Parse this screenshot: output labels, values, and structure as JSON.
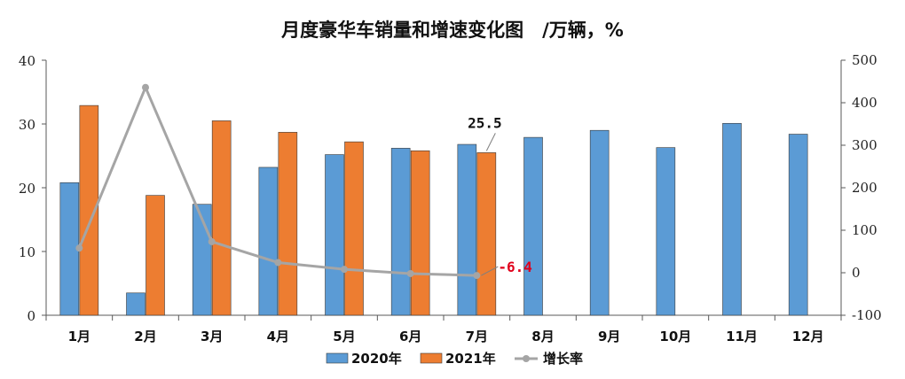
{
  "chart_data": {
    "type": "bar",
    "title": "月度豪华车销量和增速变化图　/万辆，%",
    "categories": [
      "1月",
      "2月",
      "3月",
      "4月",
      "5月",
      "6月",
      "7月",
      "8月",
      "9月",
      "10月",
      "11月",
      "12月"
    ],
    "series": [
      {
        "name": "2020年",
        "type": "bar",
        "axis": "left",
        "color": "#5B9BD5",
        "values": [
          20.8,
          3.5,
          17.4,
          23.2,
          25.2,
          26.2,
          26.8,
          27.9,
          29.0,
          26.3,
          30.1,
          28.4
        ]
      },
      {
        "name": "2021年",
        "type": "bar",
        "axis": "left",
        "color": "#ED7D31",
        "values": [
          32.9,
          18.8,
          30.5,
          28.7,
          27.2,
          25.8,
          25.5,
          null,
          null,
          null,
          null,
          null
        ]
      },
      {
        "name": "增长率",
        "type": "line",
        "axis": "right",
        "color": "#A5A5A5",
        "values": [
          58,
          436,
          73,
          24,
          8,
          -2,
          -6.4,
          null,
          null,
          null,
          null,
          null
        ]
      }
    ],
    "y_left": {
      "min": 0,
      "max": 40,
      "ticks": [
        0,
        10,
        20,
        30,
        40
      ]
    },
    "y_right": {
      "min": -100,
      "max": 500,
      "ticks": [
        -100,
        0,
        100,
        200,
        300,
        400,
        500
      ]
    },
    "annotations": [
      {
        "text": "25.5",
        "series": "2021年",
        "index": 6,
        "color": "#111111"
      },
      {
        "text": "-6.4",
        "series": "增长率",
        "index": 6,
        "color": "#E0001B"
      }
    ],
    "legend": {
      "position": "bottom"
    },
    "grid": false
  }
}
